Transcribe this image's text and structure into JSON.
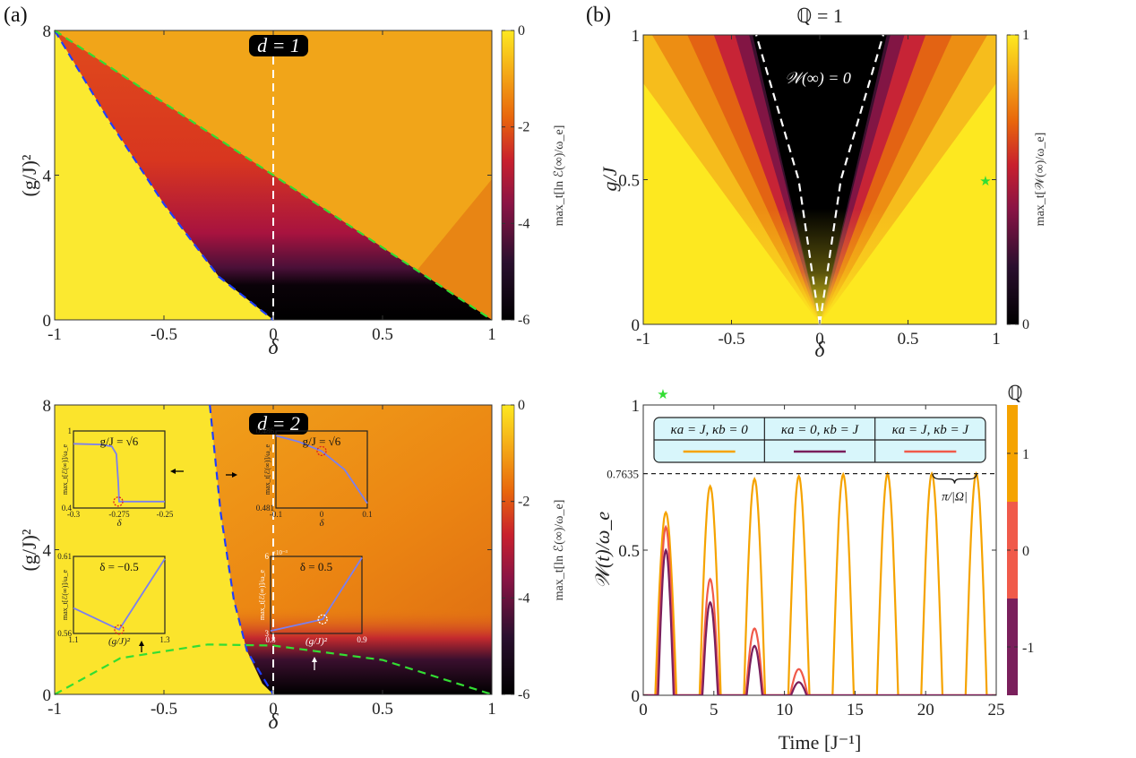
{
  "panels": {
    "a_label": "(a)",
    "b_label": "(b)"
  },
  "chart_data": [
    {
      "id": "a-top",
      "type": "heatmap",
      "badge": "d = 1",
      "xlabel": "δ",
      "ylabel": "(g/J)²",
      "xlim": [
        -1,
        1
      ],
      "ylim": [
        0,
        8
      ],
      "xticks": [
        "-1",
        "-0.5",
        "0",
        "0.5",
        "1"
      ],
      "yticks": [
        "0",
        "4",
        "8"
      ],
      "colorbar": {
        "label": "max_t[ln ℰ(∞)/ω_e]",
        "range": [
          -6,
          0
        ],
        "ticks": [
          "0",
          "-2",
          "-4",
          "-6"
        ],
        "colormap": "inferno-like"
      },
      "lines": [
        {
          "name": "blue-boundary",
          "style": "dashed",
          "color": "#1f3fff",
          "points": [
            [
              -1,
              8
            ],
            [
              -0.75,
              5.5
            ],
            [
              -0.5,
              3.2
            ],
            [
              -0.25,
              1.2
            ],
            [
              0,
              0
            ]
          ]
        },
        {
          "name": "green-boundary",
          "style": "dashed",
          "color": "#33dd33",
          "points": [
            [
              -1,
              8
            ],
            [
              0,
              4
            ],
            [
              1,
              0
            ]
          ]
        },
        {
          "name": "white-center",
          "style": "dashed",
          "color": "#ffffff",
          "points": [
            [
              0,
              0
            ],
            [
              0,
              7.3
            ]
          ]
        }
      ]
    },
    {
      "id": "a-bottom",
      "type": "heatmap",
      "badge": "d = 2",
      "xlabel": "δ",
      "ylabel": "(g/J)²",
      "xlim": [
        -1,
        1
      ],
      "ylim": [
        0,
        8
      ],
      "xticks": [
        "-1",
        "-0.5",
        "0",
        "0.5",
        "1"
      ],
      "yticks": [
        "0",
        "4",
        "8"
      ],
      "colorbar": {
        "label": "max_t[ln ℰ(∞)/ω_e]",
        "range": [
          -6,
          0
        ],
        "ticks": [
          "0",
          "-2",
          "-4",
          "-6"
        ],
        "colormap": "inferno-like"
      },
      "lines": [
        {
          "name": "blue-boundary",
          "style": "dashed",
          "color": "#1f3fff",
          "points": [
            [
              -0.29,
              8
            ],
            [
              -0.24,
              5
            ],
            [
              -0.18,
              2.6
            ],
            [
              -0.12,
              1.2
            ],
            [
              0,
              0
            ]
          ]
        },
        {
          "name": "green-boundary",
          "style": "dashed",
          "color": "#33dd33",
          "points": [
            [
              -1,
              0
            ],
            [
              -0.7,
              1.0
            ],
            [
              -0.3,
              1.38
            ],
            [
              0,
              1.35
            ],
            [
              0.5,
              0.95
            ],
            [
              1,
              0
            ]
          ]
        },
        {
          "name": "white-center",
          "style": "dashed",
          "color": "#ffffff",
          "points": [
            [
              0,
              0
            ],
            [
              0,
              7.3
            ]
          ]
        }
      ],
      "insets": [
        {
          "title": "g/J = √6",
          "xlabel": "δ",
          "ylabel": "max_t[ℰ(∞)]/ω_e",
          "xticks": [
            "-0.3",
            "-0.275",
            "-0.25"
          ],
          "yticks": [
            "0.4",
            "1"
          ],
          "xlim": [
            -0.3,
            -0.25
          ],
          "ylim": [
            0.4,
            1
          ],
          "series": [
            [
              -0.3,
              0.9
            ],
            [
              -0.285,
              0.895
            ],
            [
              -0.279,
              0.88
            ],
            [
              -0.2765,
              0.82
            ],
            [
              -0.2755,
              0.6
            ],
            [
              -0.275,
              0.45
            ],
            [
              -0.2745,
              0.45
            ],
            [
              -0.25,
              0.45
            ]
          ],
          "marker": [
            -0.2755,
            0.45
          ],
          "marker_color": "#e02020"
        },
        {
          "title": "g/J = √6",
          "xlabel": "δ",
          "ylabel": "max_t[ℰ(∞)]/ω_e",
          "xticks": [
            "-0.1",
            "0",
            "0.1"
          ],
          "yticks": [
            "0.481",
            "0.486"
          ],
          "xlim": [
            -0.1,
            0.1
          ],
          "ylim": [
            0.481,
            0.486
          ],
          "series": [
            [
              -0.1,
              0.4857
            ],
            [
              -0.05,
              0.4853
            ],
            [
              0,
              0.4847
            ],
            [
              0.05,
              0.4835
            ],
            [
              0.1,
              0.4813
            ]
          ],
          "marker": [
            0,
            0.4847
          ],
          "marker_color": "#e02020"
        },
        {
          "title": "δ = −0.5",
          "xlabel": "(g/J)²",
          "ylabel": "max_t[ℰ(∞)]/ω_e",
          "xticks": [
            "1.1",
            "1.3"
          ],
          "yticks": [
            "0.56",
            "0.61"
          ],
          "xlim": [
            1.1,
            1.3
          ],
          "ylim": [
            0.56,
            0.61
          ],
          "series": [
            [
              1.1,
              0.5765
            ],
            [
              1.2,
              0.5625
            ],
            [
              1.3,
              0.6085
            ]
          ],
          "marker": [
            1.2,
            0.5625
          ],
          "marker_color": "#e02020"
        },
        {
          "title": "δ = 0.5",
          "xlabel": "(g/J)²",
          "ylabel": "max_t[ℰ(∞)]/ω_e",
          "xticks": [
            "0.8",
            "0.9"
          ],
          "yticks": [
            "3",
            "6"
          ],
          "yscale_note": "×10⁻³",
          "xlim": [
            0.8,
            0.9
          ],
          "ylim": [
            3,
            6
          ],
          "series": [
            [
              0.8,
              3.1
            ],
            [
              0.857,
              3.55
            ],
            [
              0.9,
              5.95
            ]
          ],
          "marker": [
            0.857,
            3.55
          ],
          "marker_color": "#ffffff"
        }
      ]
    },
    {
      "id": "b-top",
      "type": "heatmap",
      "title": "ℚ = 1",
      "annotation": "𝒲(∞) = 0",
      "xlabel": "δ",
      "ylabel": "g/J",
      "xlim": [
        -1,
        1
      ],
      "ylim": [
        0,
        1
      ],
      "xticks": [
        "-1",
        "-0.5",
        "0",
        "0.5",
        "1"
      ],
      "yticks": [
        "0",
        "0.5",
        "1"
      ],
      "colorbar": {
        "label": "max_t[𝒲(∞)/ω_e]",
        "range": [
          0,
          1
        ],
        "ticks": [
          "0",
          "1"
        ],
        "colormap": "inferno-like"
      },
      "star_marker": [
        0.93,
        0.5
      ],
      "lines": [
        {
          "name": "white-left",
          "style": "dashed",
          "color": "#ffffff",
          "points": [
            [
              0,
              0
            ],
            [
              -0.12,
              0.5
            ],
            [
              -0.36,
              1
            ]
          ]
        },
        {
          "name": "white-right",
          "style": "dashed",
          "color": "#ffffff",
          "points": [
            [
              0,
              0
            ],
            [
              0.12,
              0.5
            ],
            [
              0.36,
              1
            ]
          ]
        }
      ]
    },
    {
      "id": "b-bottom",
      "type": "line",
      "xlabel": "Time [J⁻¹]",
      "ylabel": "𝒲(t)/ω_e",
      "xlim": [
        0,
        25
      ],
      "ylim": [
        0,
        1
      ],
      "xticks": [
        "0",
        "5",
        "10",
        "15",
        "20",
        "25"
      ],
      "yticks": [
        "0",
        "0.5",
        "1"
      ],
      "reference_line": {
        "value": 0.7635,
        "label": "0.7635"
      },
      "brace_annotation": "π/|Ω|",
      "star_marker": "top-left",
      "legend": [
        {
          "label": "κa = J,  κb = 0",
          "color": "#f5a300"
        },
        {
          "label": "κa = 0,  κb = J",
          "color": "#7a1f5c"
        },
        {
          "label": "κa = J,  κb = J",
          "color": "#f05a4a"
        }
      ],
      "colorbar": {
        "title": "ℚ",
        "ticks": [
          "1",
          "0",
          "-1"
        ],
        "colors": [
          "#f5a300",
          "#f05a4a",
          "#7a1f5c"
        ]
      },
      "series": [
        {
          "name": "κa = J, κb = 0",
          "color": "#f5a300",
          "period": 3.14,
          "first_peak": 1.6,
          "half_width": 0.75,
          "peaks": [
            0.63,
            0.72,
            0.745,
            0.755,
            0.761,
            0.763,
            0.7635,
            0.7635
          ]
        },
        {
          "name": "κa = J, κb = J",
          "color": "#f05a4a",
          "period": 3.14,
          "first_peak": 1.6,
          "half_width": 0.62,
          "peaks": [
            0.58,
            0.4,
            0.23,
            0.09
          ]
        },
        {
          "name": "κa = 0, κb = J",
          "color": "#7a1f5c",
          "period": 3.14,
          "first_peak": 1.6,
          "half_width": 0.55,
          "peaks": [
            0.5,
            0.32,
            0.17,
            0.045
          ]
        }
      ]
    }
  ]
}
